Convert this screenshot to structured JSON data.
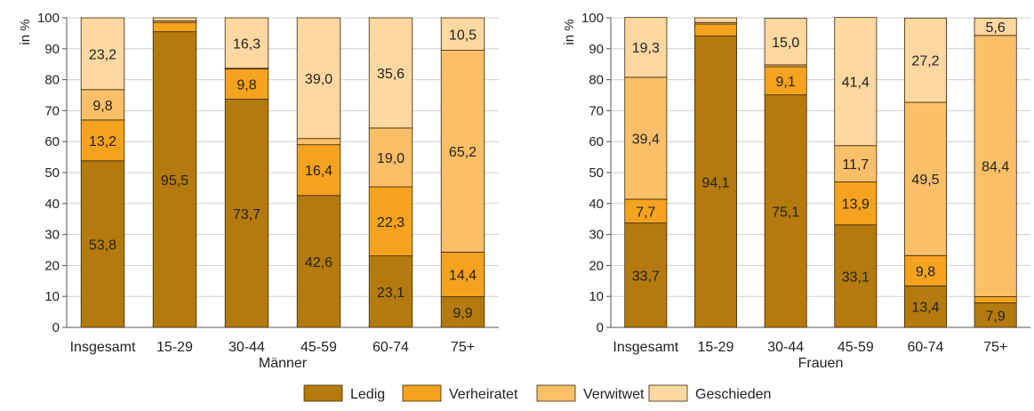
{
  "colors": {
    "Ledig": "#b47a0d",
    "Verheiratet": "#f5a21e",
    "Verwitwet": "#fbbf68",
    "Geschieden": "#fdd8a0",
    "grid": "#cfcfcf",
    "axis": "#555555"
  },
  "legend": {
    "items": [
      "Ledig",
      "Verheiratet",
      "Verwitwet",
      "Geschieden"
    ]
  },
  "chart_data": [
    {
      "type": "bar",
      "stacked": true,
      "title": "",
      "xlabel": "Männer",
      "ylabel": "in %",
      "ylim": [
        0,
        100
      ],
      "yticks": [
        0,
        10,
        20,
        30,
        40,
        50,
        60,
        70,
        80,
        90,
        100
      ],
      "grid": true,
      "categories": [
        "Insgesamt",
        "15-29",
        "30-44",
        "45-59",
        "60-74",
        "75+"
      ],
      "series": [
        {
          "name": "Ledig",
          "values": [
            53.8,
            95.5,
            73.7,
            42.6,
            23.1,
            9.9
          ],
          "labels": [
            "53,8",
            "95,5",
            "73,7",
            "42,6",
            "23,1",
            "9,9"
          ]
        },
        {
          "name": "Verheiratet",
          "values": [
            13.2,
            3.0,
            9.8,
            16.4,
            22.3,
            14.4
          ],
          "labels": [
            "13,2",
            "",
            "9,8",
            "16,4",
            "22,3",
            "14,4"
          ]
        },
        {
          "name": "Verwitwet",
          "values": [
            9.8,
            0.5,
            0.2,
            2.0,
            19.0,
            65.2
          ],
          "labels": [
            "9,8",
            "",
            "",
            "",
            "19,0",
            "65,2"
          ]
        },
        {
          "name": "Geschieden",
          "values": [
            23.2,
            1.0,
            16.3,
            39.0,
            35.6,
            10.5
          ],
          "labels": [
            "23,2",
            "",
            "16,3",
            "39,0",
            "35,6",
            "10,5"
          ]
        }
      ]
    },
    {
      "type": "bar",
      "stacked": true,
      "title": "",
      "xlabel": "Frauen",
      "ylabel": "in %",
      "ylim": [
        0,
        100
      ],
      "yticks": [
        0,
        10,
        20,
        30,
        40,
        50,
        60,
        70,
        80,
        90,
        100
      ],
      "grid": true,
      "categories": [
        "Insgesamt",
        "15-29",
        "30-44",
        "45-59",
        "60-74",
        "75+"
      ],
      "series": [
        {
          "name": "Ledig",
          "values": [
            33.7,
            94.1,
            75.1,
            33.1,
            13.4,
            7.9
          ],
          "labels": [
            "33,7",
            "94,1",
            "75,1",
            "33,1",
            "13,4",
            "7,9"
          ]
        },
        {
          "name": "Verheiratet",
          "values": [
            7.7,
            3.9,
            9.1,
            13.9,
            9.8,
            2.0
          ],
          "labels": [
            "7,7",
            "",
            "9,1",
            "13,9",
            "9,8",
            ""
          ]
        },
        {
          "name": "Verwitwet",
          "values": [
            39.4,
            0.5,
            0.6,
            11.7,
            49.5,
            84.4
          ],
          "labels": [
            "39,4",
            "",
            "",
            "11,7",
            "49,5",
            "84,4"
          ]
        },
        {
          "name": "Geschieden",
          "values": [
            19.3,
            1.5,
            15.0,
            41.4,
            27.2,
            5.6
          ],
          "labels": [
            "19,3",
            "",
            "15,0",
            "41,4",
            "27,2",
            "5,6"
          ]
        }
      ]
    }
  ]
}
